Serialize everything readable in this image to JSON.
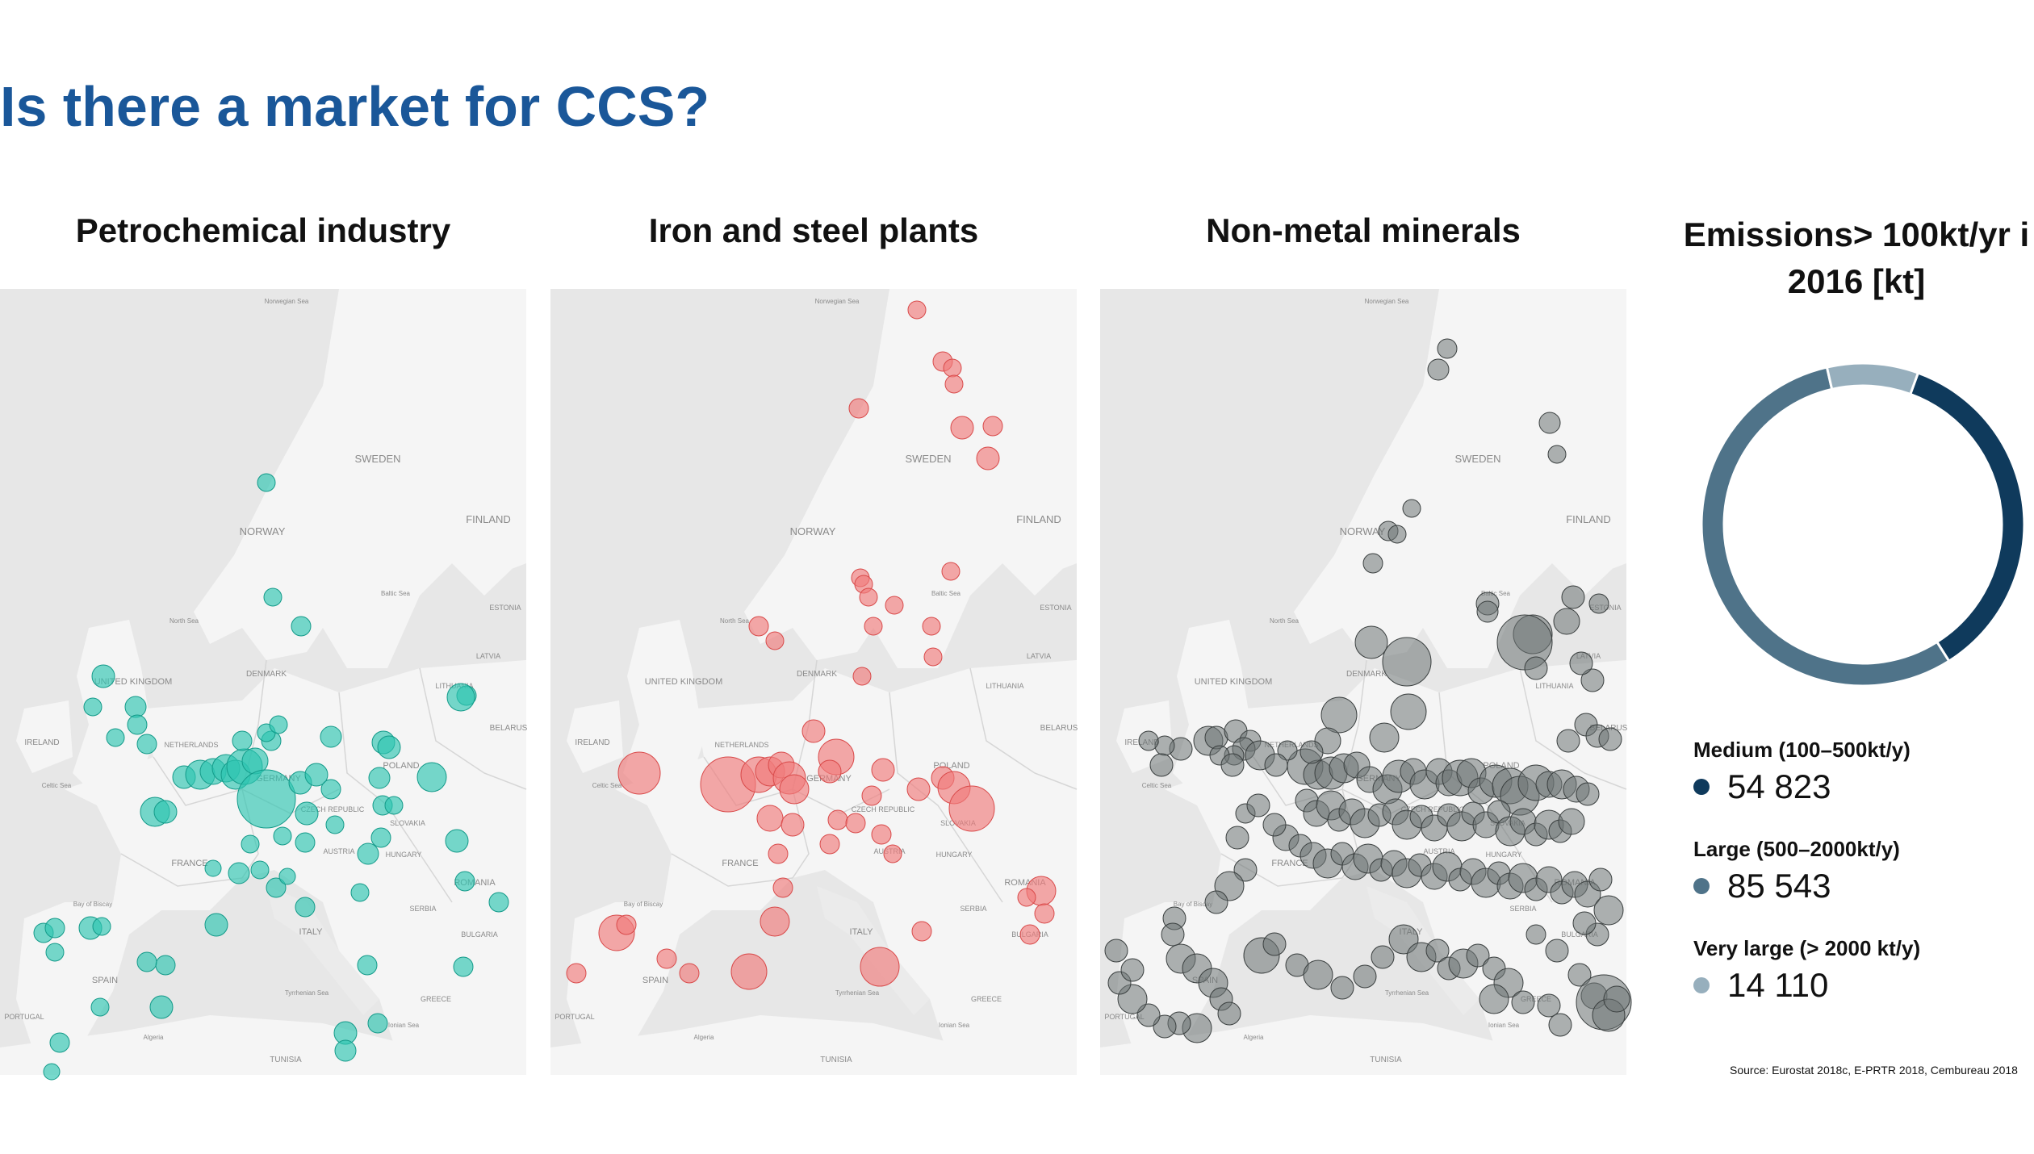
{
  "title": "Is there a market for CCS?",
  "panels": [
    {
      "title": "Petrochemical industry",
      "fill": "#2ec4b0",
      "stroke": "#139a89"
    },
    {
      "title": "Iron and steel plants",
      "fill": "#f07b7b",
      "stroke": "#d94a4a"
    },
    {
      "title": "Non-metal minerals",
      "fill": "#6e7575",
      "stroke": "#3a3f3f"
    }
  ],
  "map_labels": {
    "norwegian_sea": "Norwegian Sea",
    "sweden": "SWEDEN",
    "norway": "NORWAY",
    "finland": "FINLAND",
    "united_kingdom": "UNITED KINGDOM",
    "ireland": "IRELAND",
    "denmark": "DENMARK",
    "netherlands": "NETHERLANDS",
    "germany": "GERMANY",
    "poland": "POLAND",
    "france": "FRANCE",
    "spain": "SPAIN",
    "portugal": "PORTUGAL",
    "italy": "ITALY",
    "austria": "AUSTRIA",
    "czech_republic": "CZECH REPUBLIC",
    "romania": "ROMANIA",
    "bulgaria": "BULGARIA",
    "greece": "GREECE",
    "serbia": "SERBIA",
    "hungary": "HUNGARY",
    "belarus": "BELARUS",
    "lithuania": "LITHUANIA",
    "latvia": "LATVIA",
    "estonia": "ESTONIA",
    "north_sea": "North Sea",
    "baltic_sea": "Baltic Sea",
    "tunisia": "TUNISIA",
    "slovakia": "SLOVAKIA",
    "celtic_sea": "Celtic Sea",
    "bay_of_biscay": "Bay of Biscay",
    "tyrrhenian_sea": "Tyrrhenian Sea",
    "ionian_sea": "Ionian Sea",
    "algeria": "Algeria"
  },
  "chart_data": {
    "type": "pie",
    "title": "Emissions> 100kt/yr i 2016 [kt]",
    "categories": [
      "Medium (100–500kt/y)",
      "Large (500–2000kt/y)",
      "Very large (> 2000 kt/y)"
    ],
    "values": [
      54823,
      85543,
      14110
    ],
    "value_labels": [
      "54 823",
      "85 543",
      "14 110"
    ],
    "colors": [
      "#0f3a5c",
      "#4f7389",
      "#97afbd"
    ],
    "style": "donut",
    "legend_position": "below"
  },
  "source": "Source: Eurostat 2018c, E-PRTR 2018, Cembureau 2018"
}
